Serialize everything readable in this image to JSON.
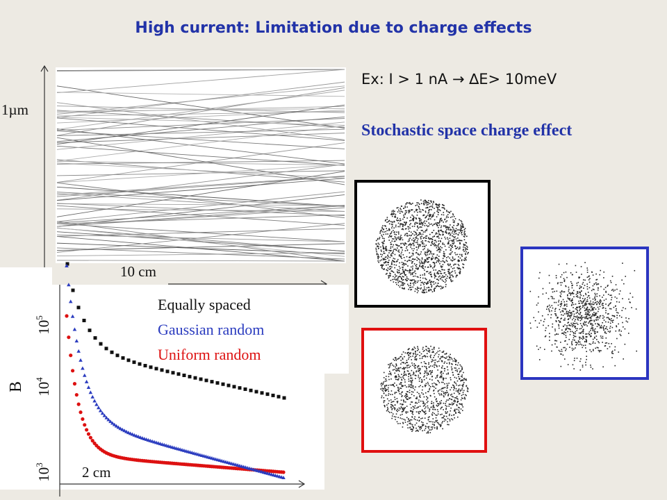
{
  "slide": {
    "title": "High current: Limitation due to charge effects",
    "example": "Ex: I > 1 nA → ∆E> 10meV",
    "subtitle": "Stochastic space charge effect",
    "track_panel": {
      "y_scale_label": "1µm",
      "x_scale_label": "10 cm"
    },
    "plot": {
      "ylabel": "B",
      "x_scale_label": "2 cm",
      "y_tick_1e5": "10",
      "y_tick_1e5_exp": "5",
      "y_tick_1e4": "10",
      "y_tick_1e4_exp": "4",
      "y_tick_1e3": "10",
      "y_tick_1e3_exp": "3",
      "legend": [
        {
          "name": "Equally spaced",
          "color": "#111111"
        },
        {
          "name": "Gaussian random",
          "color": "#2b3cbf"
        },
        {
          "name": "Uniform random",
          "color": "#dd1111"
        }
      ]
    },
    "beam_spots": [
      {
        "frame_color": "#000000",
        "distribution": "equally spaced"
      },
      {
        "frame_color": "#e01010",
        "distribution": "uniform random"
      },
      {
        "frame_color": "#2b35c0",
        "distribution": "gaussian random"
      }
    ]
  }
}
